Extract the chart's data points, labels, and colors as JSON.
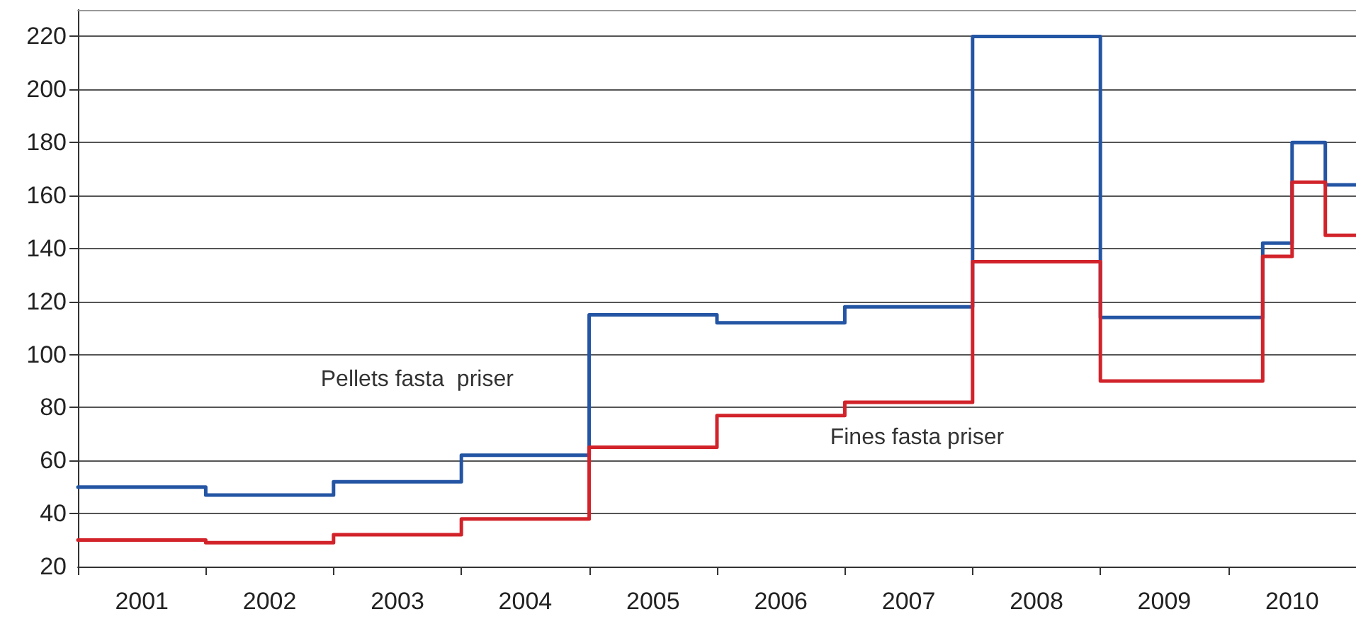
{
  "chart_data": {
    "type": "step",
    "x": [
      2001,
      2002,
      2003,
      2004,
      2005,
      2006,
      2007,
      2008,
      2009,
      2010.27,
      2010.5,
      2010.76,
      2011
    ],
    "series": [
      {
        "name": "Pellets fasta  priser",
        "color": "#2455a4",
        "values": [
          50,
          47,
          52,
          62,
          115,
          112,
          118,
          220,
          114,
          142,
          180,
          164,
          164
        ]
      },
      {
        "name": "Fines fasta priser",
        "color": "#d2232a",
        "values": [
          30,
          29,
          32,
          38,
          65,
          77,
          82,
          135,
          90,
          137,
          165,
          145,
          145
        ]
      }
    ],
    "xlim": [
      2001,
      2011
    ],
    "xticks": [
      {
        "value": 2001.5,
        "label": "2001"
      },
      {
        "value": 2002.5,
        "label": "2002"
      },
      {
        "value": 2003.5,
        "label": "2003"
      },
      {
        "value": 2004.5,
        "label": "2004"
      },
      {
        "value": 2005.5,
        "label": "2005"
      },
      {
        "value": 2006.5,
        "label": "2006"
      },
      {
        "value": 2007.5,
        "label": "2007"
      },
      {
        "value": 2008.5,
        "label": "2008"
      },
      {
        "value": 2009.5,
        "label": "2009"
      },
      {
        "value": 2010.5,
        "label": "2010"
      }
    ],
    "ylim": [
      20,
      230
    ],
    "yticks": [
      20,
      40,
      60,
      80,
      100,
      120,
      140,
      160,
      180,
      200,
      220
    ],
    "grid": "y",
    "legend": false,
    "marker": "none",
    "line_style": "solid"
  }
}
